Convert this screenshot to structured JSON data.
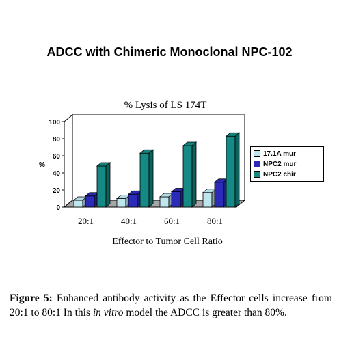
{
  "figure": {
    "slide_title": "ADCC with Chimeric Monoclonal NPC-102",
    "caption_label": "Figure 5:",
    "caption_part1": " Enhanced antibody activity as the Effector cells increase from 20:1 to 80:1 In this ",
    "caption_italic": "in vitro",
    "caption_part2": " model the ADCC is greater than 80%."
  },
  "chart_data": {
    "type": "bar",
    "title": "% Lysis of LS 174T",
    "xlabel": "Effector to Tumor Cell Ratio",
    "ylabel": "%",
    "ylim": [
      0,
      100
    ],
    "yticks": [
      "0",
      "20",
      "40",
      "60",
      "80",
      "100"
    ],
    "grid": false,
    "legend_position": "right",
    "categories": [
      "20:1",
      "40:1",
      "60:1",
      "80:1"
    ],
    "series": [
      {
        "name": "17.1A mur",
        "values": [
          8,
          10,
          12,
          17
        ],
        "color": "#bfe6ee"
      },
      {
        "name": "NPC2 mur",
        "values": [
          13,
          15,
          18,
          29
        ],
        "color": "#2b2bb8"
      },
      {
        "name": "NPC2 chir",
        "values": [
          48,
          63,
          72,
          83
        ],
        "color": "#158a85"
      }
    ]
  }
}
